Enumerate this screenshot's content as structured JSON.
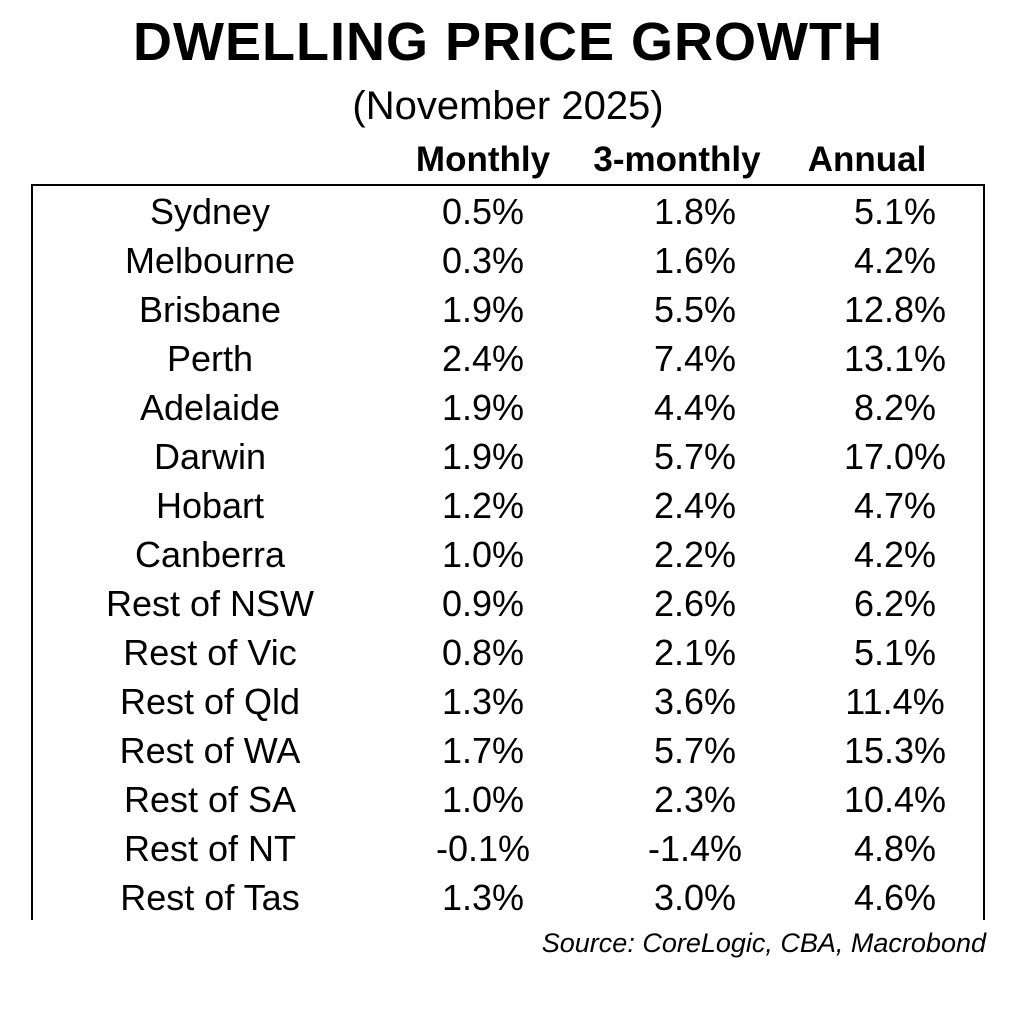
{
  "title": "DWELLING PRICE GROWTH",
  "subtitle": "(November 2025)",
  "source": "Source: CoreLogic, CBA, Macrobond",
  "chart_data": {
    "type": "table",
    "columns": [
      "Monthly",
      "3-monthly",
      "Annual"
    ],
    "rows": [
      {
        "region": "Sydney",
        "monthly": "0.5%",
        "three_monthly": "1.8%",
        "annual": "5.1%"
      },
      {
        "region": "Melbourne",
        "monthly": "0.3%",
        "three_monthly": "1.6%",
        "annual": "4.2%"
      },
      {
        "region": "Brisbane",
        "monthly": "1.9%",
        "three_monthly": "5.5%",
        "annual": "12.8%"
      },
      {
        "region": "Perth",
        "monthly": "2.4%",
        "three_monthly": "7.4%",
        "annual": "13.1%"
      },
      {
        "region": "Adelaide",
        "monthly": "1.9%",
        "three_monthly": "4.4%",
        "annual": "8.2%"
      },
      {
        "region": "Darwin",
        "monthly": "1.9%",
        "three_monthly": "5.7%",
        "annual": "17.0%"
      },
      {
        "region": "Hobart",
        "monthly": "1.2%",
        "three_monthly": "2.4%",
        "annual": "4.7%"
      },
      {
        "region": "Canberra",
        "monthly": "1.0%",
        "three_monthly": "2.2%",
        "annual": "4.2%"
      },
      {
        "region": "Rest of NSW",
        "monthly": "0.9%",
        "three_monthly": "2.6%",
        "annual": "6.2%"
      },
      {
        "region": "Rest of Vic",
        "monthly": "0.8%",
        "three_monthly": "2.1%",
        "annual": "5.1%"
      },
      {
        "region": "Rest of Qld",
        "monthly": "1.3%",
        "three_monthly": "3.6%",
        "annual": "11.4%"
      },
      {
        "region": "Rest of WA",
        "monthly": "1.7%",
        "three_monthly": "5.7%",
        "annual": "15.3%"
      },
      {
        "region": "Rest of SA",
        "monthly": "1.0%",
        "three_monthly": "2.3%",
        "annual": "10.4%"
      },
      {
        "region": "Rest of NT",
        "monthly": "-0.1%",
        "three_monthly": "-1.4%",
        "annual": "4.8%"
      },
      {
        "region": "Rest of Tas",
        "monthly": "1.3%",
        "three_monthly": "3.0%",
        "annual": "4.6%"
      }
    ]
  }
}
